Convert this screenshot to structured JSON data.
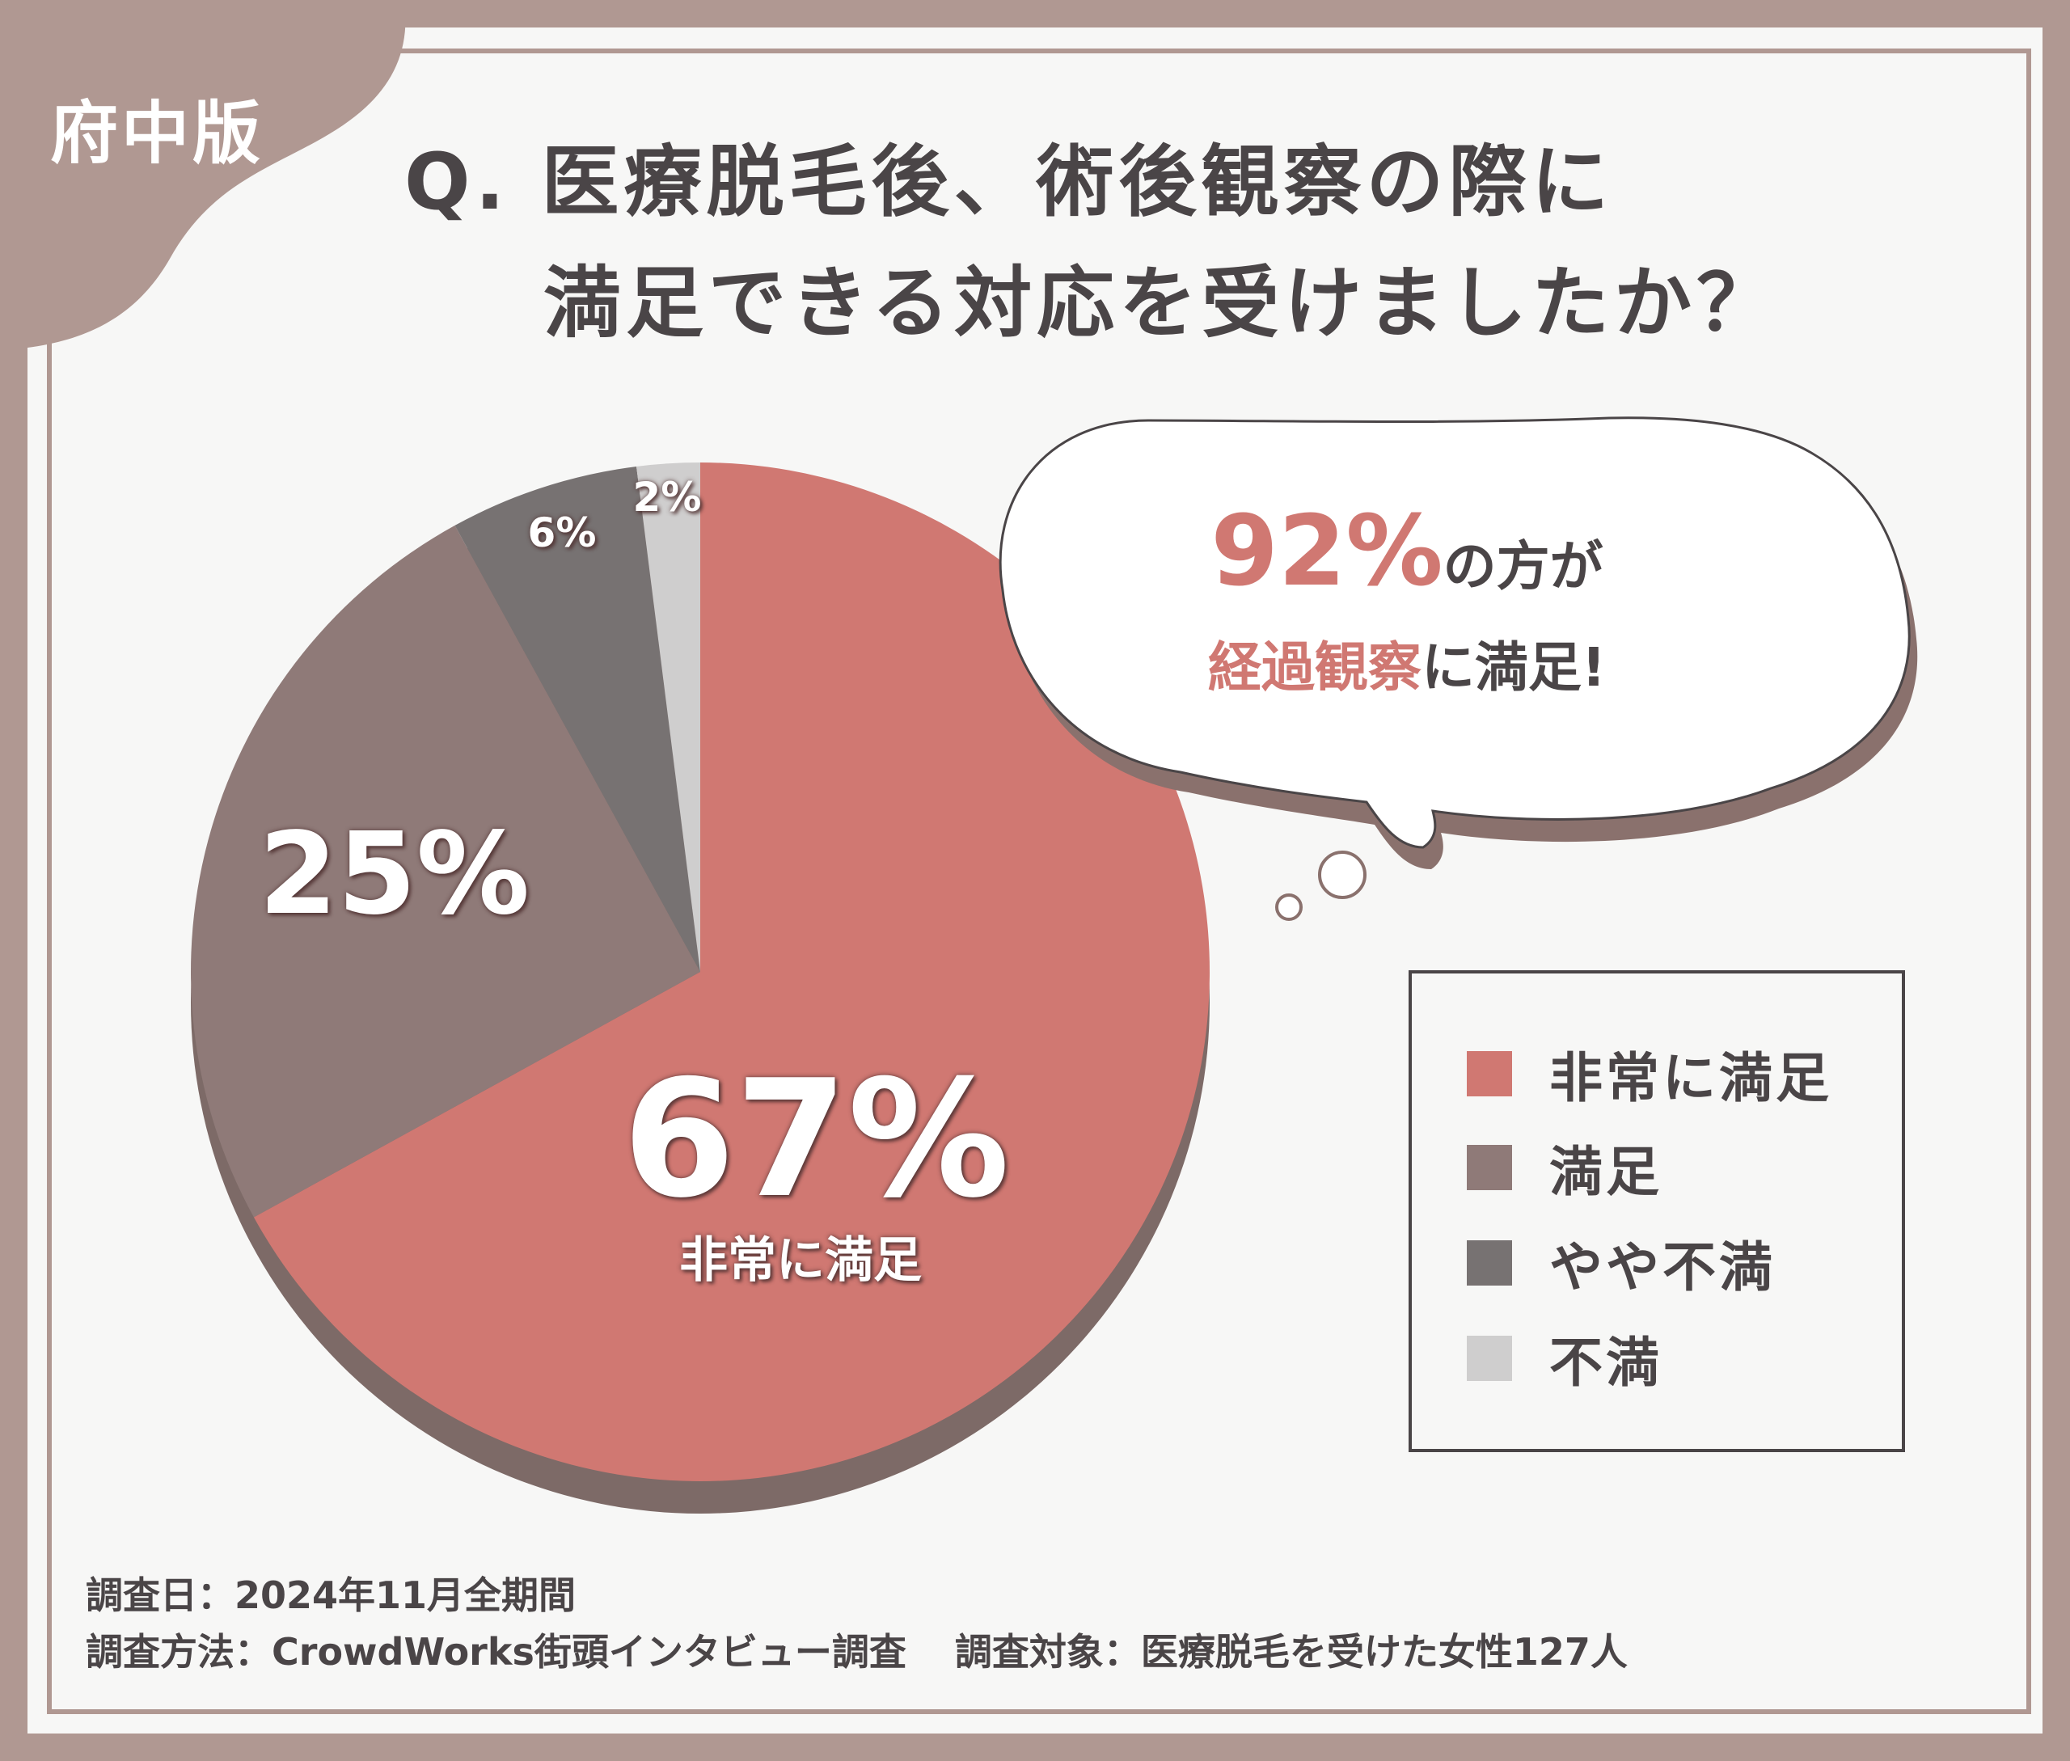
{
  "tag": "府中版",
  "question": {
    "line1": "Q. 医療脱毛後、術後観察の際に",
    "line2": "満足できる対応を受けましたか？"
  },
  "chart_data": {
    "type": "pie",
    "title": "Q. 医療脱毛後、術後観察の際に満足できる対応を受けましたか？",
    "categories": [
      "非常に満足",
      "満足",
      "やや不満",
      "不満"
    ],
    "values": [
      67,
      25,
      6,
      2
    ],
    "labels": [
      "67%",
      "25%",
      "6%",
      "2%"
    ],
    "main_label_sub": "非常に満足",
    "colors": [
      "#d07872",
      "#8f7a78",
      "#777272",
      "#cfcece"
    ],
    "legend_position": "right"
  },
  "bubble": {
    "percent": "92%",
    "text1": "の方が",
    "highlight": "経過観察",
    "text2": "に満足!"
  },
  "legend": {
    "items": [
      {
        "label": "非常に満足",
        "color": "#d07872"
      },
      {
        "label": "満足",
        "color": "#8f7a78"
      },
      {
        "label": "やや不満",
        "color": "#777272"
      },
      {
        "label": "不満",
        "color": "#cfcece"
      }
    ]
  },
  "footer": {
    "date": "調査日：2024年11月全期間",
    "method": "調査方法：CrowdWorks街頭インタビュー調査",
    "target": "調査対象：医療脱毛を受けた女性127人"
  }
}
